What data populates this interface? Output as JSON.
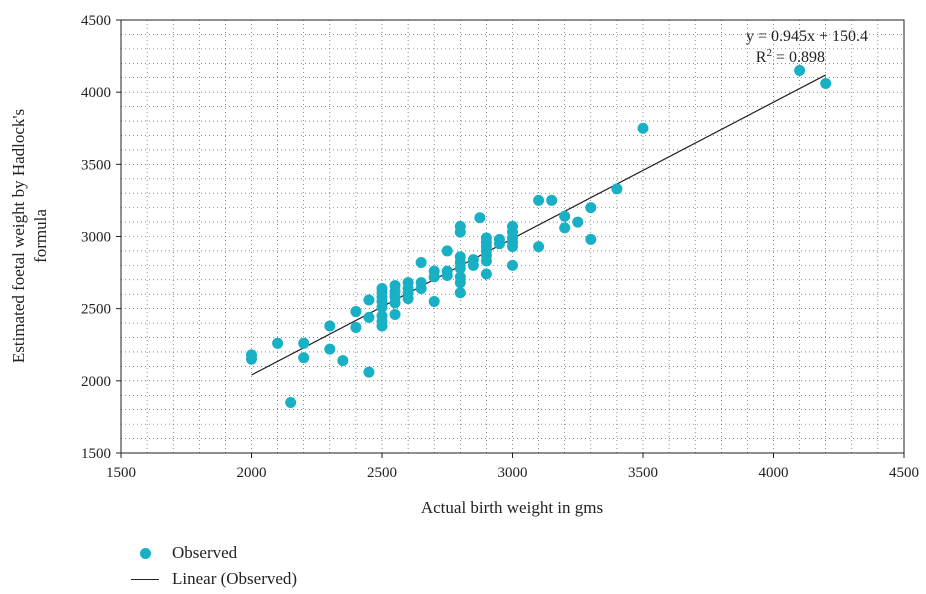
{
  "chart_data": {
    "type": "scatter",
    "xlabel": "Actual birth weight in gms",
    "ylabel_lines": [
      "Estimated foetal weight by Hadlock's",
      "formula"
    ],
    "xlim": [
      1500,
      4500
    ],
    "ylim": [
      1500,
      4500
    ],
    "xticks": [
      1500,
      2000,
      2500,
      3000,
      3500,
      4000,
      4500
    ],
    "yticks": [
      1500,
      2000,
      2500,
      3000,
      3500,
      4000,
      4500
    ],
    "grid": true,
    "marker_color": "#17b0c4",
    "line_color": "#222222",
    "series": [
      {
        "name": "Observed",
        "points": [
          [
            2000,
            2180
          ],
          [
            2000,
            2150
          ],
          [
            2100,
            2260
          ],
          [
            2150,
            1850
          ],
          [
            2200,
            2260
          ],
          [
            2200,
            2160
          ],
          [
            2300,
            2380
          ],
          [
            2300,
            2220
          ],
          [
            2350,
            2140
          ],
          [
            2400,
            2480
          ],
          [
            2400,
            2370
          ],
          [
            2450,
            2560
          ],
          [
            2450,
            2440
          ],
          [
            2450,
            2060
          ],
          [
            2500,
            2640
          ],
          [
            2500,
            2610
          ],
          [
            2500,
            2580
          ],
          [
            2500,
            2550
          ],
          [
            2500,
            2510
          ],
          [
            2500,
            2450
          ],
          [
            2500,
            2410
          ],
          [
            2500,
            2380
          ],
          [
            2550,
            2660
          ],
          [
            2550,
            2620
          ],
          [
            2550,
            2580
          ],
          [
            2550,
            2540
          ],
          [
            2550,
            2460
          ],
          [
            2600,
            2680
          ],
          [
            2600,
            2640
          ],
          [
            2600,
            2610
          ],
          [
            2600,
            2570
          ],
          [
            2650,
            2820
          ],
          [
            2650,
            2680
          ],
          [
            2650,
            2640
          ],
          [
            2700,
            2760
          ],
          [
            2700,
            2720
          ],
          [
            2700,
            2550
          ],
          [
            2750,
            2900
          ],
          [
            2750,
            2760
          ],
          [
            2750,
            2730
          ],
          [
            2800,
            3070
          ],
          [
            2800,
            3030
          ],
          [
            2800,
            2860
          ],
          [
            2800,
            2820
          ],
          [
            2800,
            2780
          ],
          [
            2800,
            2720
          ],
          [
            2800,
            2680
          ],
          [
            2800,
            2610
          ],
          [
            2850,
            2840
          ],
          [
            2850,
            2800
          ],
          [
            2875,
            3130
          ],
          [
            2900,
            2990
          ],
          [
            2900,
            2960
          ],
          [
            2900,
            2930
          ],
          [
            2900,
            2900
          ],
          [
            2900,
            2870
          ],
          [
            2900,
            2830
          ],
          [
            2900,
            2740
          ],
          [
            2950,
            2980
          ],
          [
            2950,
            2950
          ],
          [
            3000,
            3070
          ],
          [
            3000,
            3030
          ],
          [
            3000,
            2990
          ],
          [
            3000,
            2960
          ],
          [
            3000,
            2930
          ],
          [
            3000,
            2800
          ],
          [
            3100,
            3250
          ],
          [
            3100,
            2930
          ],
          [
            3150,
            3250
          ],
          [
            3200,
            3140
          ],
          [
            3200,
            3060
          ],
          [
            3250,
            3100
          ],
          [
            3300,
            3200
          ],
          [
            3300,
            2980
          ],
          [
            3400,
            3330
          ],
          [
            3500,
            3750
          ],
          [
            4100,
            4150
          ],
          [
            4200,
            4060
          ]
        ]
      },
      {
        "name": "Linear (Observed)",
        "slope": 0.945,
        "intercept": 150.4,
        "x_range": [
          2000,
          4200
        ]
      }
    ],
    "annotations": {
      "equation": "y = 0.945x + 150.4",
      "r2_prefix": "R",
      "r2_sup": "2",
      "r2_value": " = 0.898"
    }
  },
  "legend": {
    "items": [
      {
        "label": "Observed",
        "kind": "marker"
      },
      {
        "label": "Linear (Observed)",
        "kind": "line"
      }
    ]
  }
}
